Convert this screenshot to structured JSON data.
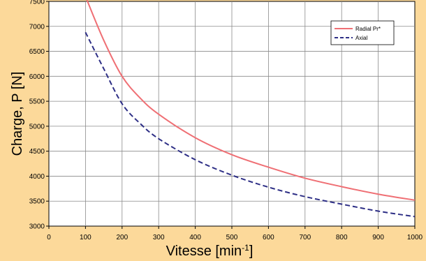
{
  "chart_data": {
    "type": "line",
    "xlabel": "Vitesse [min",
    "xlabel_sup": "-1",
    "xlabel_suffix": "]",
    "ylabel": "Charge, P [N]",
    "xlim": [
      0,
      1000
    ],
    "ylim": [
      3000,
      7500
    ],
    "xticks": [
      "0",
      "100",
      "200",
      "300",
      "400",
      "500",
      "600",
      "700",
      "800",
      "900",
      "1000"
    ],
    "yticks": [
      "3000",
      "3500",
      "4000",
      "4500",
      "5000",
      "5500",
      "6000",
      "6500",
      "7000",
      "7500"
    ],
    "grid": true,
    "legend_position": "top-right",
    "series": [
      {
        "name": "Radial Pr*",
        "color": "#ef6f74",
        "dash": "solid",
        "x": [
          100,
          150,
          200,
          250,
          300,
          400,
          500,
          600,
          700,
          800,
          900,
          1000
        ],
        "y": [
          7600,
          6720,
          6000,
          5560,
          5240,
          4770,
          4430,
          4180,
          3960,
          3790,
          3640,
          3520
        ]
      },
      {
        "name": "Axial",
        "color": "#2e2f86",
        "dash": "dashed",
        "x": [
          100,
          150,
          200,
          250,
          300,
          400,
          500,
          600,
          700,
          800,
          900,
          1000
        ],
        "y": [
          6880,
          6150,
          5450,
          5050,
          4750,
          4330,
          4020,
          3780,
          3590,
          3440,
          3300,
          3190
        ]
      }
    ]
  }
}
